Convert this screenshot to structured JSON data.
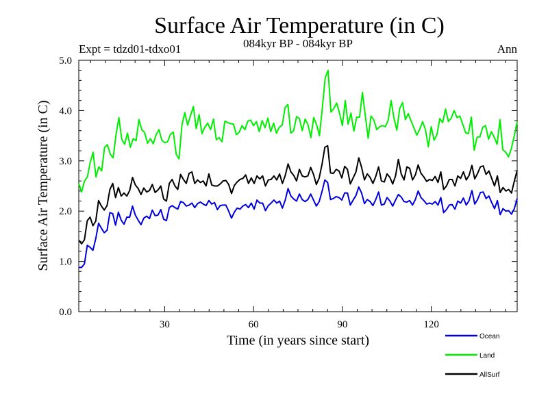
{
  "chart_data": {
    "type": "line",
    "title": "Surface Air Temperature (in C)",
    "subtitle": "084kyr BP - 084kyr BP",
    "left_label": "Expt = tdzd01-tdxo01",
    "right_label": "Ann",
    "xlabel": "Time (in years since start)",
    "ylabel": "Surface Air Temperature (in C)",
    "xlim": [
      1,
      149
    ],
    "ylim": [
      0,
      5
    ],
    "xticks": [
      30,
      60,
      90,
      120
    ],
    "xtick_labels": [
      "30",
      "60",
      "90",
      "120"
    ],
    "yticks": [
      0,
      1,
      2,
      3,
      4,
      5
    ],
    "ytick_labels": [
      "0.0",
      "1.0",
      "2.0",
      "3.0",
      "4.0",
      "5.0"
    ],
    "legend_position": "below-right",
    "series": [
      {
        "name": "Ocean",
        "color": "#0000dd",
        "values": [
          0.88,
          0.88,
          0.95,
          1.32,
          1.28,
          1.22,
          1.45,
          1.76,
          1.66,
          1.57,
          1.62,
          1.97,
          1.95,
          1.72,
          1.98,
          1.82,
          1.74,
          1.88,
          1.88,
          2.1,
          1.92,
          1.82,
          1.73,
          1.86,
          1.9,
          1.85,
          2.02,
          1.91,
          1.92,
          2.03,
          1.84,
          1.81,
          2.07,
          2.11,
          2.07,
          2.04,
          2.19,
          2.17,
          2.1,
          2.12,
          2.16,
          2.07,
          2.15,
          2.18,
          2.14,
          2.11,
          2.21,
          2.14,
          2.17,
          2.03,
          2.11,
          2.12,
          2.12,
          2.0,
          1.86,
          1.98,
          2.06,
          2.04,
          2.1,
          2.13,
          2.07,
          2.16,
          2.04,
          2.22,
          2.16,
          2.16,
          2.01,
          2.11,
          2.16,
          2.22,
          2.16,
          2.2,
          2.06,
          2.22,
          2.45,
          2.3,
          2.24,
          2.2,
          2.34,
          2.23,
          2.19,
          2.23,
          2.34,
          2.22,
          2.1,
          2.19,
          2.39,
          2.62,
          2.57,
          2.23,
          2.25,
          2.29,
          2.27,
          2.22,
          2.36,
          2.36,
          2.12,
          2.22,
          2.31,
          2.48,
          2.36,
          2.15,
          2.23,
          2.19,
          2.11,
          2.23,
          2.38,
          2.12,
          2.14,
          2.27,
          2.2,
          2.1,
          2.22,
          2.33,
          2.28,
          2.19,
          2.18,
          2.21,
          2.12,
          2.23,
          2.4,
          2.27,
          2.21,
          2.14,
          2.16,
          2.14,
          2.19,
          2.12,
          2.27,
          1.97,
          2.03,
          2.12,
          2.13,
          2.04,
          2.2,
          2.16,
          2.26,
          2.12,
          2.21,
          2.41,
          2.14,
          2.23,
          2.37,
          2.38,
          2.25,
          2.3,
          2.17,
          2.05,
          2.21,
          1.93,
          2.05,
          2.0,
          2.01,
          1.94,
          2.05,
          2.25
        ]
      },
      {
        "name": "Land",
        "color": "#00ee00",
        "values": [
          2.55,
          2.38,
          2.6,
          2.68,
          2.97,
          3.17,
          2.68,
          2.88,
          2.8,
          3.27,
          3.32,
          3.13,
          3.06,
          3.52,
          3.86,
          3.43,
          3.33,
          3.55,
          3.27,
          3.44,
          3.4,
          3.82,
          3.62,
          3.56,
          3.35,
          3.44,
          3.34,
          3.52,
          3.62,
          3.41,
          3.36,
          3.38,
          3.53,
          3.57,
          3.13,
          3.04,
          3.71,
          3.96,
          3.71,
          3.9,
          4.08,
          3.64,
          3.92,
          3.54,
          3.67,
          3.75,
          3.62,
          3.83,
          3.42,
          3.46,
          3.38,
          3.79,
          3.76,
          3.74,
          3.73,
          3.52,
          3.57,
          3.7,
          3.62,
          3.79,
          3.81,
          3.7,
          3.78,
          3.58,
          3.8,
          3.66,
          3.85,
          3.58,
          3.75,
          3.55,
          3.67,
          3.71,
          4.06,
          4.12,
          3.55,
          3.6,
          3.88,
          3.84,
          3.6,
          3.83,
          3.72,
          3.46,
          3.86,
          3.72,
          3.5,
          4.05,
          4.65,
          4.8,
          3.97,
          4.04,
          4.15,
          3.95,
          3.7,
          4.2,
          3.73,
          3.95,
          3.59,
          3.87,
          3.87,
          4.36,
          3.9,
          3.45,
          3.89,
          3.81,
          3.62,
          3.68,
          3.7,
          3.68,
          3.81,
          4.2,
          3.85,
          3.61,
          4.04,
          4.16,
          3.82,
          3.94,
          3.79,
          3.65,
          3.51,
          3.63,
          3.78,
          3.62,
          3.28,
          3.68,
          3.41,
          3.52,
          3.84,
          3.76,
          4.03,
          3.78,
          3.85,
          4.0,
          3.86,
          3.89,
          3.73,
          3.56,
          3.54,
          3.87,
          3.21,
          3.47,
          3.48,
          3.67,
          3.7,
          3.43,
          3.58,
          3.47,
          3.33,
          3.82,
          3.22,
          3.17,
          3.08,
          3.25,
          3.5,
          3.78
        ]
      },
      {
        "name": "AllSurf",
        "color": "#000000",
        "values": [
          1.42,
          1.35,
          1.43,
          1.81,
          1.88,
          1.71,
          1.8,
          2.21,
          2.1,
          2.02,
          2.11,
          2.43,
          2.55,
          2.27,
          2.47,
          2.3,
          2.36,
          2.3,
          2.41,
          2.67,
          2.52,
          2.45,
          2.33,
          2.46,
          2.38,
          2.41,
          2.53,
          2.37,
          2.42,
          2.5,
          2.24,
          2.2,
          2.55,
          2.63,
          2.5,
          2.43,
          2.73,
          2.63,
          2.55,
          2.75,
          2.78,
          2.55,
          2.62,
          2.57,
          2.6,
          2.5,
          2.74,
          2.52,
          2.5,
          2.5,
          2.54,
          2.6,
          2.61,
          2.53,
          2.35,
          2.51,
          2.58,
          2.63,
          2.65,
          2.72,
          2.55,
          2.66,
          2.55,
          2.7,
          2.64,
          2.7,
          2.5,
          2.62,
          2.63,
          2.7,
          2.62,
          2.74,
          2.55,
          2.71,
          2.94,
          2.78,
          2.71,
          2.6,
          2.83,
          2.7,
          2.68,
          2.7,
          2.87,
          2.73,
          2.53,
          2.66,
          2.93,
          3.27,
          3.3,
          2.76,
          2.75,
          2.83,
          2.8,
          2.66,
          2.89,
          2.83,
          2.54,
          2.66,
          2.78,
          3.06,
          2.87,
          2.62,
          2.74,
          2.67,
          2.55,
          2.69,
          2.88,
          2.6,
          2.58,
          2.74,
          2.67,
          2.54,
          2.7,
          3.03,
          2.74,
          2.62,
          2.88,
          2.85,
          2.62,
          2.72,
          2.92,
          2.75,
          2.68,
          2.59,
          2.63,
          2.61,
          2.69,
          2.57,
          2.78,
          2.43,
          2.5,
          2.63,
          2.63,
          2.5,
          2.7,
          2.65,
          2.78,
          2.62,
          2.71,
          2.91,
          2.64,
          2.75,
          2.88,
          2.9,
          2.73,
          2.8,
          2.65,
          2.5,
          2.7,
          2.37,
          2.47,
          2.4,
          2.43,
          2.36,
          2.6,
          2.81
        ]
      }
    ]
  }
}
